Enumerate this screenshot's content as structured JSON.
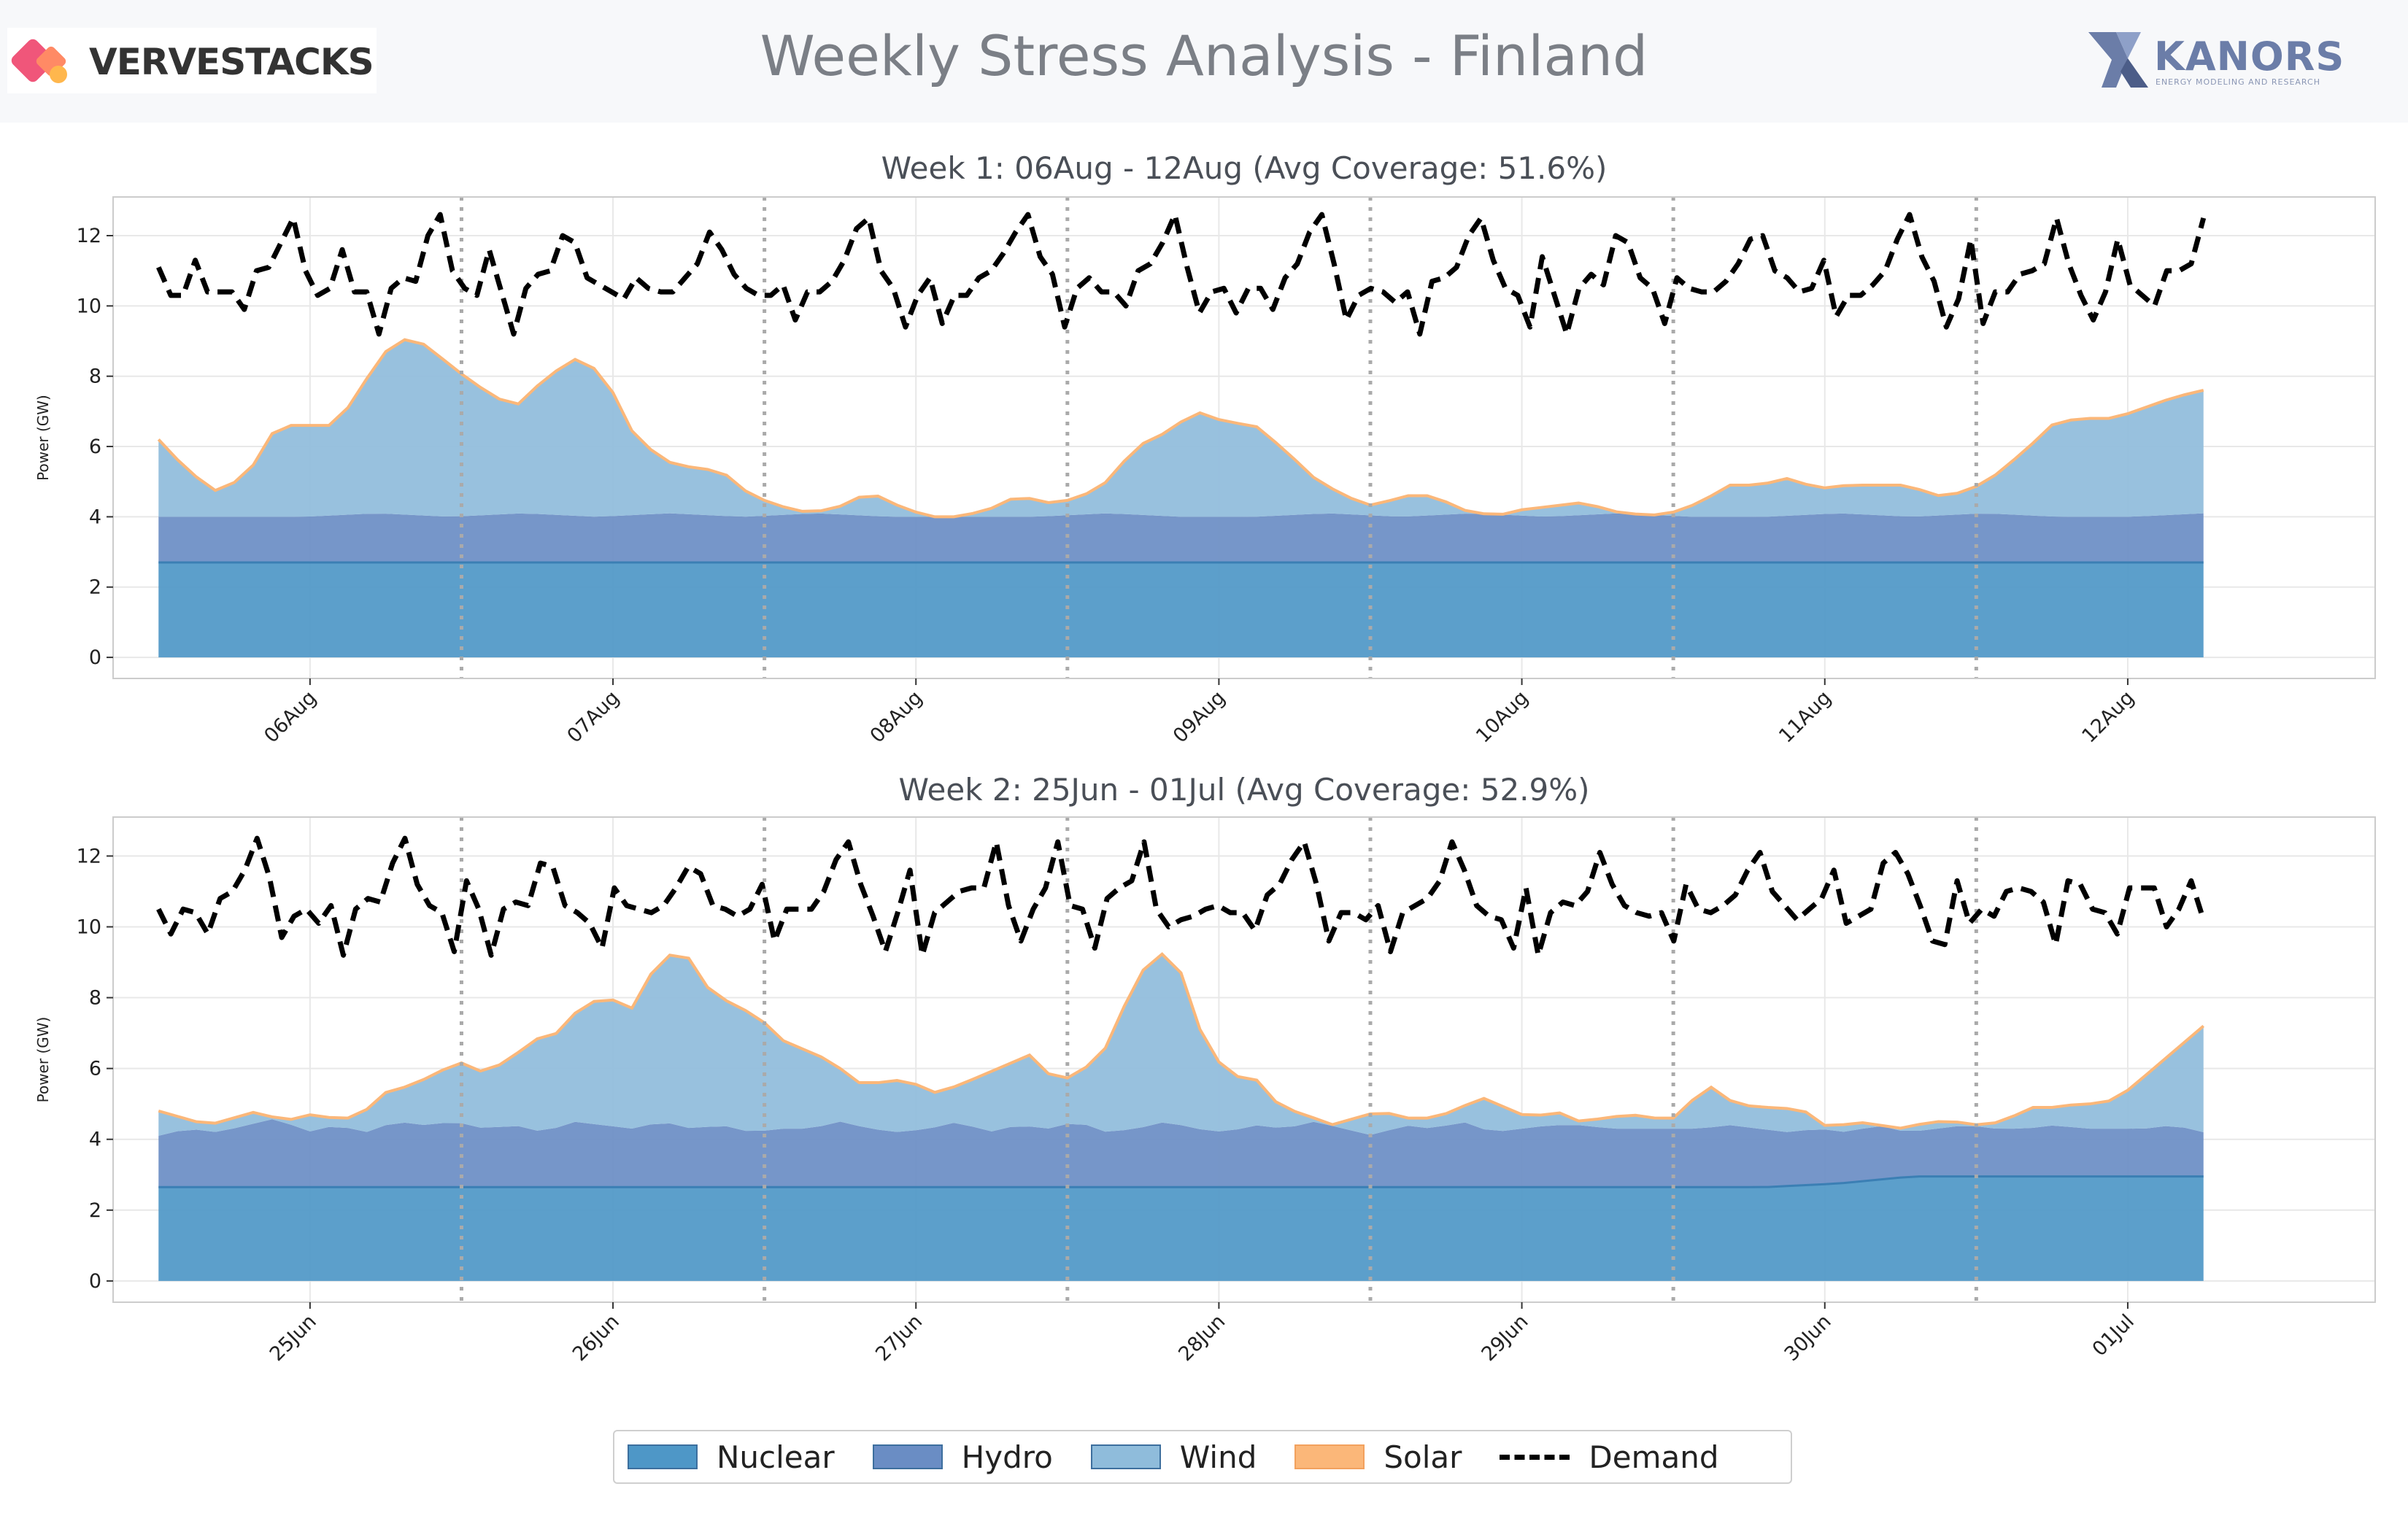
{
  "header": {
    "title": "Weekly Stress Analysis - Finland",
    "left_logo": "VERVESTACKS",
    "right_logo": "KANORS",
    "right_logo_sub": "ENERGY MODELING AND RESEARCH"
  },
  "colors": {
    "nuclear": "#4e97c7",
    "hydro": "#6a8dc4",
    "wind": "#8fbcdb",
    "solar": "#fbb779",
    "demand": "#000000",
    "grid": "#e8e8e8",
    "day_divider": "#aaaaaa"
  },
  "legend": [
    {
      "key": "nuclear",
      "label": "Nuclear"
    },
    {
      "key": "hydro",
      "label": "Hydro"
    },
    {
      "key": "wind",
      "label": "Wind"
    },
    {
      "key": "solar",
      "label": "Solar"
    },
    {
      "key": "demand",
      "label": "Demand"
    }
  ],
  "chart_data": [
    {
      "type": "area",
      "title": "Week 1: 06Aug - 12Aug (Avg Coverage: 51.6%)",
      "ylabel": "Power (GW)",
      "ylim": [
        -0.6,
        13.1
      ],
      "yticks": [
        0,
        2,
        4,
        6,
        8,
        10,
        12
      ],
      "grid": true,
      "x_unit": "hours from 06Aug 00:00 (days of week)",
      "xlim": [
        -15.6,
        163.6
      ],
      "xticks": [
        {
          "x": 0,
          "label": "06Aug"
        },
        {
          "x": 24,
          "label": "07Aug"
        },
        {
          "x": 48,
          "label": "08Aug"
        },
        {
          "x": 72,
          "label": "09Aug"
        },
        {
          "x": 96,
          "label": "10Aug"
        },
        {
          "x": 120,
          "label": "11Aug"
        },
        {
          "x": 144,
          "label": "12Aug"
        }
      ],
      "day_dividers": [
        12,
        36,
        60,
        84,
        108,
        132
      ],
      "x_start": -12,
      "x_step": 1.5,
      "series": [
        {
          "name": "Nuclear",
          "kind": "stack",
          "step": 6,
          "values": [
            2.7,
            2.7,
            2.7,
            2.7,
            2.7,
            2.7,
            2.7,
            2.7,
            2.7,
            2.7,
            2.7,
            2.7,
            2.7,
            2.7,
            2.7,
            2.7,
            2.7,
            2.7,
            2.7,
            2.7,
            2.7,
            2.7,
            2.7,
            2.7,
            2.7,
            2.7,
            2.7,
            2.7,
            2.7
          ]
        },
        {
          "name": "Hydro",
          "kind": "stack_total",
          "step": 6,
          "values": [
            4.0,
            4.0,
            4.0,
            4.1,
            4.0,
            4.1,
            4.0,
            4.1,
            4.0,
            4.1,
            4.0,
            4.0,
            4.0,
            4.1,
            4.0,
            4.0,
            4.1,
            4.0,
            4.1,
            4.0,
            4.1,
            4.0,
            4.0,
            4.1,
            4.0,
            4.1,
            4.0,
            4.0,
            4.1
          ]
        },
        {
          "name": "Wind",
          "kind": "stack_total",
          "step": 3,
          "values": [
            6.2,
            5.3,
            4.7,
            5.2,
            6.6,
            6.6,
            6.6,
            7.9,
            9.1,
            8.9,
            8.2,
            7.6,
            7.1,
            7.9,
            8.5,
            8.1,
            6.4,
            5.6,
            5.4,
            5.3,
            4.6,
            4.3,
            4.1,
            4.3,
            4.7,
            4.3,
            4.0,
            4.0,
            4.2,
            4.6,
            4.4,
            4.5,
            5.0,
            6.0,
            6.4,
            7.0,
            6.7,
            6.6,
            5.9,
            5.1,
            4.6,
            4.3,
            4.6,
            4.6,
            4.2,
            4.0,
            4.2,
            4.3,
            4.4,
            4.2,
            3.9,
            4.1,
            4.4,
            4.9,
            4.9,
            5.1,
            4.8,
            4.9,
            4.9,
            4.9,
            4.6,
            4.7,
            5.2,
            5.9,
            6.7,
            6.8,
            6.8,
            7.1,
            7.4,
            7.6
          ]
        },
        {
          "name": "Solar",
          "kind": "edge",
          "values": []
        },
        {
          "name": "Demand",
          "kind": "line",
          "step": 1.5,
          "values": [
            11.1,
            10.3,
            10.3,
            11.3,
            10.4,
            10.4,
            10.4,
            9.9,
            11.0,
            11.1,
            11.8,
            12.5,
            11.0,
            10.3,
            10.5,
            11.6,
            10.4,
            10.4,
            9.2,
            10.5,
            10.8,
            10.7,
            12.0,
            12.6,
            11.0,
            10.5,
            10.3,
            11.6,
            10.4,
            9.2,
            10.5,
            10.9,
            11.0,
            12.0,
            11.8,
            10.8,
            10.6,
            10.4,
            10.2,
            10.8,
            10.5,
            10.4,
            10.4,
            10.8,
            11.2,
            12.1,
            11.6,
            10.9,
            10.5,
            10.3,
            10.3,
            10.6,
            9.6,
            10.4,
            10.4,
            10.7,
            11.3,
            12.2,
            12.5,
            11.0,
            10.5,
            9.4,
            10.3,
            10.8,
            9.5,
            10.3,
            10.3,
            10.8,
            11.0,
            11.5,
            12.1,
            12.6,
            11.4,
            10.9,
            9.4,
            10.5,
            10.8,
            10.4,
            10.4,
            10.0,
            11.0,
            11.2,
            11.8,
            12.6,
            11.1,
            9.8,
            10.4,
            10.5,
            9.8,
            10.5,
            10.5,
            9.9,
            10.8,
            11.2,
            12.1,
            12.6,
            11.2,
            9.6,
            10.3,
            10.5,
            10.4,
            10.1,
            10.4,
            9.2,
            10.7,
            10.8,
            11.1,
            12.0,
            12.5,
            11.3,
            10.5,
            10.3,
            9.4,
            11.4,
            10.3,
            9.2,
            10.5,
            10.9,
            10.6,
            12.0,
            11.8,
            10.8,
            10.5,
            9.5,
            10.8,
            10.5,
            10.4,
            10.4,
            10.7,
            11.2,
            11.9,
            12.0,
            11.0,
            10.8,
            10.4,
            10.5,
            11.3,
            9.7,
            10.3,
            10.3,
            10.6,
            11.0,
            11.9,
            12.6,
            11.4,
            10.7,
            9.4,
            10.2,
            11.9,
            9.5,
            10.4,
            10.4,
            10.9,
            11.0,
            11.2,
            12.5,
            11.2,
            10.3,
            9.6,
            10.4,
            11.9,
            10.6,
            10.3,
            10.0,
            11.0,
            11.0,
            11.2,
            12.5
          ]
        }
      ]
    },
    {
      "type": "area",
      "title": "Week 2: 25Jun - 01Jul (Avg Coverage: 52.9%)",
      "ylabel": "Power (GW)",
      "ylim": [
        -0.6,
        13.1
      ],
      "yticks": [
        0,
        2,
        4,
        6,
        8,
        10,
        12
      ],
      "grid": true,
      "x_unit": "hours from 25Jun 00:00 (days of week)",
      "xlim": [
        -15.6,
        163.6
      ],
      "xticks": [
        {
          "x": 0,
          "label": "25Jun"
        },
        {
          "x": 24,
          "label": "26Jun"
        },
        {
          "x": 48,
          "label": "27Jun"
        },
        {
          "x": 72,
          "label": "28Jun"
        },
        {
          "x": 96,
          "label": "29Jun"
        },
        {
          "x": 120,
          "label": "30Jun"
        },
        {
          "x": 144,
          "label": "01Jul"
        }
      ],
      "day_dividers": [
        12,
        36,
        60,
        84,
        108,
        132
      ],
      "x_start": -12,
      "x_step": 1.5,
      "series": [
        {
          "name": "Nuclear",
          "kind": "stack",
          "step": 6,
          "values": [
            2.65,
            2.65,
            2.65,
            2.65,
            2.65,
            2.65,
            2.65,
            2.65,
            2.65,
            2.65,
            2.65,
            2.65,
            2.65,
            2.65,
            2.65,
            2.65,
            2.65,
            2.65,
            2.65,
            2.65,
            2.65,
            2.65,
            2.65,
            2.75,
            2.95,
            2.95,
            2.95,
            2.95,
            2.95
          ]
        },
        {
          "name": "Hydro",
          "kind": "stack_total",
          "step": 3,
          "values": [
            4.1,
            4.3,
            4.2,
            4.4,
            4.6,
            4.2,
            4.4,
            4.2,
            4.5,
            4.4,
            4.5,
            4.3,
            4.4,
            4.2,
            4.5,
            4.4,
            4.3,
            4.5,
            4.3,
            4.4,
            4.2,
            4.3,
            4.3,
            4.5,
            4.3,
            4.2,
            4.3,
            4.5,
            4.2,
            4.4,
            4.3,
            4.5,
            4.2,
            4.3,
            4.5,
            4.3,
            4.2,
            4.4,
            4.3,
            4.5,
            4.3,
            4.1,
            4.4,
            4.3,
            4.5,
            4.2,
            4.3,
            4.4,
            4.4,
            4.3,
            4.3,
            4.3,
            4.3,
            4.4,
            4.3,
            4.2,
            4.3,
            4.2,
            4.4,
            4.2,
            4.3,
            4.4,
            4.3,
            4.3,
            4.4,
            4.3,
            4.3,
            4.3,
            4.4,
            4.2
          ]
        },
        {
          "name": "Wind",
          "kind": "stack_total",
          "step": 3,
          "values": [
            4.8,
            4.6,
            4.4,
            4.6,
            4.8,
            4.5,
            4.7,
            4.6,
            4.6,
            5.3,
            5.5,
            5.8,
            6.2,
            5.9,
            6.2,
            6.8,
            7.0,
            7.8,
            8.0,
            7.7,
            9.0,
            9.4,
            8.3,
            7.8,
            7.5,
            6.8,
            6.5,
            6.2,
            5.6,
            5.6,
            5.7,
            5.3,
            5.5,
            5.8,
            6.1,
            6.4,
            5.6,
            5.9,
            6.6,
            8.2,
            9.4,
            8.7,
            6.6,
            5.8,
            5.7,
            4.9,
            4.7,
            4.4,
            4.6,
            4.8,
            4.6,
            4.6,
            4.8,
            5.2,
            4.9,
            4.6,
            4.8,
            4.5,
            4.6,
            4.7,
            4.6,
            4.6,
            5.6,
            5.1,
            4.9,
            4.9,
            4.8,
            4.3,
            4.5,
            4.4,
            4.3,
            4.5,
            4.5,
            4.4,
            4.5,
            4.9,
            4.9,
            5.0,
            5.0,
            5.4,
            6.0,
            6.6,
            7.2
          ]
        },
        {
          "name": "Solar",
          "kind": "edge",
          "values": []
        },
        {
          "name": "Demand",
          "kind": "line",
          "step": 1.5,
          "values": [
            10.5,
            9.8,
            10.5,
            10.4,
            9.8,
            10.8,
            11.0,
            11.6,
            12.5,
            11.4,
            9.7,
            10.3,
            10.5,
            10.1,
            10.6,
            9.2,
            10.5,
            10.8,
            10.7,
            11.8,
            12.5,
            11.2,
            10.6,
            10.4,
            9.3,
            11.3,
            10.5,
            9.2,
            10.5,
            10.7,
            10.6,
            11.8,
            11.7,
            10.6,
            10.4,
            10.1,
            9.4,
            11.1,
            10.6,
            10.5,
            10.4,
            10.6,
            11.1,
            11.7,
            11.5,
            10.6,
            10.5,
            10.3,
            10.5,
            11.2,
            9.6,
            10.5,
            10.5,
            10.5,
            11.0,
            11.9,
            12.4,
            11.2,
            10.3,
            9.3,
            10.4,
            11.6,
            9.2,
            10.4,
            10.7,
            11.0,
            11.1,
            11.1,
            12.4,
            10.6,
            9.6,
            10.5,
            11.1,
            12.4,
            10.6,
            10.5,
            9.4,
            10.8,
            11.1,
            11.3,
            12.4,
            10.5,
            10.0,
            10.2,
            10.3,
            10.5,
            10.6,
            10.4,
            10.4,
            9.9,
            10.9,
            11.2,
            11.9,
            12.4,
            11.2,
            9.6,
            10.4,
            10.4,
            10.2,
            10.6,
            9.3,
            10.4,
            10.6,
            10.8,
            11.3,
            12.4,
            11.6,
            10.6,
            10.3,
            10.2,
            9.4,
            11.1,
            9.2,
            10.4,
            10.7,
            10.6,
            11.0,
            12.1,
            11.2,
            10.6,
            10.4,
            10.3,
            10.4,
            9.6,
            11.2,
            10.5,
            10.4,
            10.6,
            10.9,
            11.6,
            12.1,
            11.0,
            10.6,
            10.2,
            10.5,
            10.8,
            11.6,
            10.1,
            10.3,
            10.5,
            11.8,
            12.1,
            11.5,
            10.6,
            9.6,
            9.5,
            11.3,
            10.1,
            10.5,
            10.3,
            11.0,
            11.1,
            11.0,
            10.7,
            9.5,
            11.3,
            11.2,
            10.5,
            10.4,
            9.8,
            11.1,
            11.1,
            11.1,
            10.0,
            10.5,
            11.3,
            10.2
          ]
        }
      ]
    }
  ]
}
